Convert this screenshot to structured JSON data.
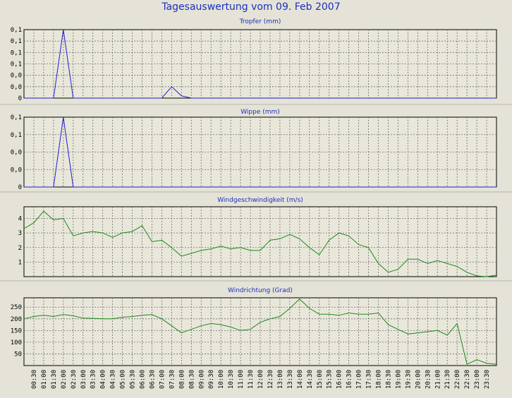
{
  "main_title": "Tagesauswertung vom 09. Feb 2007",
  "colors": {
    "blue_series": "#1f1fd0",
    "green_series": "#1a8a1a",
    "title": "#1a2fbf"
  },
  "x_labels": [
    "00:30",
    "01:00",
    "01:30",
    "02:00",
    "02:30",
    "03:00",
    "03:30",
    "04:00",
    "04:30",
    "05:00",
    "05:30",
    "06:00",
    "06:30",
    "07:00",
    "07:30",
    "08:00",
    "08:30",
    "09:00",
    "09:30",
    "10:00",
    "10:30",
    "11:00",
    "11:30",
    "12:00",
    "12:30",
    "13:00",
    "13:30",
    "14:00",
    "14:30",
    "15:00",
    "15:30",
    "16:00",
    "16:30",
    "17:00",
    "17:30",
    "18:00",
    "18:30",
    "19:00",
    "19:30",
    "20:00",
    "20:30",
    "21:00",
    "21:30",
    "22:00",
    "22:30",
    "23:00",
    "23:30"
  ],
  "chart_data": [
    {
      "type": "line",
      "title": "Tropfer (mm)",
      "ylim": [
        0,
        0.12
      ],
      "yticks": [
        0,
        0.02,
        0.04,
        0.06,
        0.08,
        0.1,
        0.12
      ],
      "ytick_labels": [
        "0",
        "0,0",
        "0,0",
        "0,1",
        "0,1",
        "0,1",
        "0,1"
      ],
      "grid": true,
      "x": [
        "00:00",
        "00:30",
        "01:00",
        "01:30",
        "02:00",
        "02:30",
        "03:00",
        "03:30",
        "04:00",
        "04:30",
        "05:00",
        "05:30",
        "06:00",
        "06:30",
        "07:00",
        "07:30",
        "08:00",
        "08:30",
        "09:00",
        "09:30",
        "10:00",
        "10:30",
        "11:00",
        "11:30",
        "12:00",
        "12:30",
        "13:00",
        "13:30",
        "14:00",
        "14:30",
        "15:00",
        "15:30",
        "16:00",
        "16:30",
        "17:00",
        "17:30",
        "18:00",
        "18:30",
        "19:00",
        "19:30",
        "20:00",
        "20:30",
        "21:00",
        "21:30",
        "22:00",
        "22:30",
        "23:00",
        "23:30",
        "24:00"
      ],
      "series": [
        {
          "color": "#1f1fd0",
          "values": [
            0,
            0,
            0,
            0,
            0.12,
            0,
            0,
            0,
            0,
            0,
            0,
            0,
            0,
            0,
            0,
            0.02,
            0.004,
            0,
            0,
            0,
            0,
            0,
            0,
            0,
            0,
            0,
            0,
            0,
            0,
            0,
            0,
            0,
            0,
            0,
            0,
            0,
            0,
            0,
            0,
            0,
            0,
            0,
            0,
            0,
            0,
            0,
            0,
            0,
            0
          ]
        }
      ]
    },
    {
      "type": "line",
      "title": "Wippe (mm)",
      "ylim": [
        0,
        0.12
      ],
      "yticks": [
        0,
        0.03,
        0.06,
        0.09,
        0.12
      ],
      "ytick_labels": [
        "0",
        "0,0",
        "0,0",
        "0,1",
        "0,1"
      ],
      "grid": true,
      "x": [
        "00:00",
        "00:30",
        "01:00",
        "01:30",
        "02:00",
        "02:30",
        "03:00",
        "03:30",
        "04:00",
        "04:30",
        "05:00",
        "05:30",
        "06:00",
        "06:30",
        "07:00",
        "07:30",
        "08:00",
        "08:30",
        "09:00",
        "09:30",
        "10:00",
        "10:30",
        "11:00",
        "11:30",
        "12:00",
        "12:30",
        "13:00",
        "13:30",
        "14:00",
        "14:30",
        "15:00",
        "15:30",
        "16:00",
        "16:30",
        "17:00",
        "17:30",
        "18:00",
        "18:30",
        "19:00",
        "19:30",
        "20:00",
        "20:30",
        "21:00",
        "21:30",
        "22:00",
        "22:30",
        "23:00",
        "23:30",
        "24:00"
      ],
      "series": [
        {
          "color": "#1f1fd0",
          "values": [
            0,
            0,
            0,
            0,
            0.12,
            0,
            0,
            0,
            0,
            0,
            0,
            0,
            0,
            0,
            0,
            0,
            0,
            0,
            0,
            0,
            0,
            0,
            0,
            0,
            0,
            0,
            0,
            0,
            0,
            0,
            0,
            0,
            0,
            0,
            0,
            0,
            0,
            0,
            0,
            0,
            0,
            0,
            0,
            0,
            0,
            0,
            0,
            0,
            0
          ]
        }
      ]
    },
    {
      "type": "line",
      "title": "Windgeschwindigkeit (m/s)",
      "ylim": [
        0,
        4.8
      ],
      "yticks": [
        1,
        2,
        3,
        4
      ],
      "ytick_labels": [
        "1",
        "2",
        "3",
        "4"
      ],
      "grid": true,
      "x": [
        "00:00",
        "00:30",
        "01:00",
        "01:30",
        "02:00",
        "02:30",
        "03:00",
        "03:30",
        "04:00",
        "04:30",
        "05:00",
        "05:30",
        "06:00",
        "06:30",
        "07:00",
        "07:30",
        "08:00",
        "08:30",
        "09:00",
        "09:30",
        "10:00",
        "10:30",
        "11:00",
        "11:30",
        "12:00",
        "12:30",
        "13:00",
        "13:30",
        "14:00",
        "14:30",
        "15:00",
        "15:30",
        "16:00",
        "16:30",
        "17:00",
        "17:30",
        "18:00",
        "18:30",
        "19:00",
        "19:30",
        "20:00",
        "20:30",
        "21:00",
        "21:30",
        "22:00",
        "22:30",
        "23:00",
        "23:30",
        "24:00"
      ],
      "series": [
        {
          "color": "#1a8a1a",
          "values": [
            3.3,
            3.7,
            4.5,
            3.9,
            4.0,
            2.8,
            3.0,
            3.1,
            3.0,
            2.7,
            3.0,
            3.1,
            3.5,
            2.4,
            2.5,
            2.0,
            1.4,
            1.6,
            1.8,
            1.9,
            2.1,
            1.9,
            2.0,
            1.8,
            1.8,
            2.5,
            2.6,
            2.9,
            2.6,
            2.0,
            1.5,
            2.5,
            3.0,
            2.8,
            2.2,
            2.0,
            0.9,
            0.3,
            0.5,
            1.2,
            1.2,
            0.9,
            1.1,
            0.9,
            0.7,
            0.3,
            0.05,
            0.0,
            0.1
          ]
        }
      ]
    },
    {
      "type": "line",
      "title": "Windrichtung (Grad)",
      "ylim": [
        0,
        290
      ],
      "yticks": [
        50,
        100,
        150,
        200,
        250
      ],
      "ytick_labels": [
        "50",
        "100",
        "150",
        "200",
        "250"
      ],
      "grid": true,
      "x": [
        "00:00",
        "00:30",
        "01:00",
        "01:30",
        "02:00",
        "02:30",
        "03:00",
        "03:30",
        "04:00",
        "04:30",
        "05:00",
        "05:30",
        "06:00",
        "06:30",
        "07:00",
        "07:30",
        "08:00",
        "08:30",
        "09:00",
        "09:30",
        "10:00",
        "10:30",
        "11:00",
        "11:30",
        "12:00",
        "12:30",
        "13:00",
        "13:30",
        "14:00",
        "14:30",
        "15:00",
        "15:30",
        "16:00",
        "16:30",
        "17:00",
        "17:30",
        "18:00",
        "18:30",
        "19:00",
        "19:30",
        "20:00",
        "20:30",
        "21:00",
        "21:30",
        "22:00",
        "22:30",
        "23:00",
        "23:30",
        "24:00"
      ],
      "series": [
        {
          "color": "#1a8a1a",
          "values": [
            200,
            210,
            215,
            210,
            218,
            213,
            203,
            202,
            200,
            200,
            207,
            210,
            215,
            218,
            200,
            170,
            140,
            155,
            170,
            180,
            175,
            165,
            150,
            155,
            185,
            200,
            210,
            245,
            285,
            245,
            220,
            220,
            215,
            225,
            220,
            220,
            225,
            175,
            155,
            135,
            140,
            145,
            150,
            130,
            180,
            5,
            25,
            10,
            5
          ]
        }
      ]
    }
  ]
}
